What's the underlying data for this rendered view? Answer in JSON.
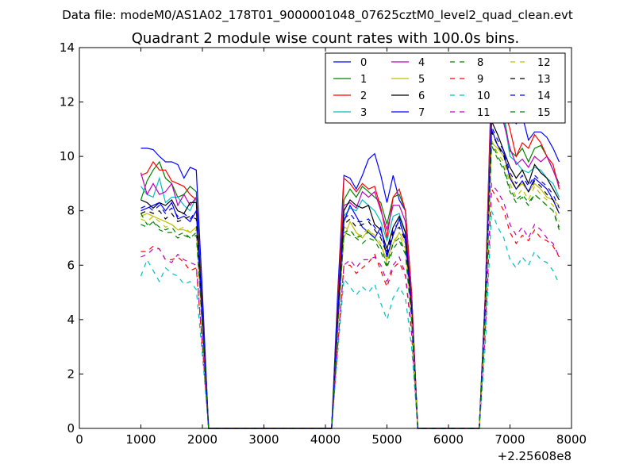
{
  "chart_data": {
    "type": "line",
    "suptitle": "Data file: modeM0/AS1A02_178T01_9000001048_07625cztM0_level2_quad_clean.evt",
    "title": "Quadrant 2 module wise count rates with 100.0s bins.",
    "xlabel": "",
    "ylabel": "",
    "x_offset_label": "+2.25608e8",
    "xlim": [
      0,
      8000
    ],
    "ylim": [
      0,
      14
    ],
    "xticks": [
      0,
      1000,
      2000,
      3000,
      4000,
      5000,
      6000,
      7000,
      8000
    ],
    "yticks": [
      0,
      2,
      4,
      6,
      8,
      10,
      12,
      14
    ],
    "legend_position": "top-right",
    "x": [
      1000,
      1100,
      1200,
      1300,
      1400,
      1500,
      1600,
      1700,
      1800,
      1900,
      2000,
      2100,
      2200,
      2300,
      2400,
      2500,
      2600,
      2700,
      2800,
      2900,
      3000,
      3100,
      3200,
      3300,
      3400,
      3500,
      3600,
      3700,
      3800,
      3900,
      4000,
      4100,
      4200,
      4300,
      4400,
      4500,
      4600,
      4700,
      4800,
      4900,
      5000,
      5100,
      5200,
      5300,
      5400,
      5500,
      5600,
      5700,
      5800,
      5900,
      6000,
      6100,
      6200,
      6300,
      6400,
      6500,
      6600,
      6700,
      6800,
      6900,
      7000,
      7100,
      7200,
      7300,
      7400,
      7500,
      7600,
      7700,
      7800
    ],
    "series": [
      {
        "name": "0",
        "color": "#0000ff",
        "dash": "solid",
        "values": [
          10.3,
          10.3,
          10.25,
          10.0,
          9.8,
          9.8,
          9.7,
          9.2,
          9.6,
          9.5,
          5.0,
          0,
          0,
          0,
          0,
          0,
          0,
          0,
          0,
          0,
          0,
          0,
          0,
          0,
          0,
          0,
          0,
          0,
          0,
          0,
          0,
          0,
          5.0,
          9.3,
          9.2,
          8.8,
          9.3,
          9.9,
          10.1,
          9.3,
          8.3,
          9.3,
          8.4,
          8.0,
          5.0,
          0,
          0,
          0,
          0,
          0,
          0,
          0,
          0,
          0,
          0,
          0,
          5.0,
          13.05,
          12.8,
          12.3,
          11.5,
          11.2,
          11.5,
          10.6,
          10.9,
          10.9,
          10.7,
          10.3,
          9.8
        ]
      },
      {
        "name": "1",
        "color": "#008000",
        "dash": "solid",
        "values": [
          8.4,
          9.1,
          9.5,
          9.8,
          9.2,
          9.0,
          8.5,
          8.6,
          8.9,
          8.7,
          4.5,
          0,
          0,
          0,
          0,
          0,
          0,
          0,
          0,
          0,
          0,
          0,
          0,
          0,
          0,
          0,
          0,
          0,
          0,
          0,
          0,
          0,
          4.5,
          8.4,
          8.8,
          8.5,
          8.9,
          8.7,
          8.5,
          8.3,
          7.5,
          8.5,
          8.6,
          8.0,
          5.0,
          0,
          0,
          0,
          0,
          0,
          0,
          0,
          0,
          0,
          0,
          0,
          5.0,
          12.5,
          11.5,
          11.5,
          10.2,
          10.0,
          10.3,
          9.8,
          10.3,
          10.4,
          10.0,
          9.5,
          9.0
        ]
      },
      {
        "name": "2",
        "color": "#ff0000",
        "dash": "solid",
        "values": [
          9.3,
          9.4,
          9.8,
          9.5,
          9.5,
          9.1,
          9.0,
          8.9,
          8.6,
          8.4,
          4.4,
          0,
          0,
          0,
          0,
          0,
          0,
          0,
          0,
          0,
          0,
          0,
          0,
          0,
          0,
          0,
          0,
          0,
          0,
          0,
          0,
          0,
          4.5,
          9.2,
          9.0,
          8.7,
          9.0,
          8.8,
          8.9,
          8.1,
          7.0,
          8.5,
          8.8,
          8.0,
          5.0,
          0,
          0,
          0,
          0,
          0,
          0,
          0,
          0,
          0,
          0,
          0,
          5.0,
          12.8,
          12.0,
          11.8,
          11.0,
          10.0,
          10.5,
          10.3,
          10.8,
          10.5,
          10.0,
          9.7,
          8.8
        ]
      },
      {
        "name": "3",
        "color": "#00bfbf",
        "dash": "solid",
        "values": [
          8.9,
          8.6,
          8.5,
          9.2,
          8.3,
          8.5,
          8.5,
          8.2,
          8.0,
          8.5,
          4.2,
          0,
          0,
          0,
          0,
          0,
          0,
          0,
          0,
          0,
          0,
          0,
          0,
          0,
          0,
          0,
          0,
          0,
          0,
          0,
          0,
          0,
          4.2,
          7.8,
          8.1,
          8.0,
          8.4,
          8.2,
          8.0,
          7.6,
          6.9,
          7.8,
          7.9,
          7.2,
          4.6,
          0,
          0,
          0,
          0,
          0,
          0,
          0,
          0,
          0,
          0,
          0,
          4.8,
          12.0,
          11.5,
          11.4,
          10.0,
          9.8,
          9.5,
          9.4,
          9.6,
          9.5,
          9.2,
          9.0,
          8.5
        ]
      },
      {
        "name": "4",
        "color": "#bf00bf",
        "dash": "solid",
        "values": [
          9.4,
          8.6,
          9.0,
          8.6,
          8.7,
          9.0,
          8.2,
          8.6,
          8.2,
          8.5,
          4.3,
          0,
          0,
          0,
          0,
          0,
          0,
          0,
          0,
          0,
          0,
          0,
          0,
          0,
          0,
          0,
          0,
          0,
          0,
          0,
          0,
          0,
          4.3,
          8.2,
          8.3,
          8.1,
          8.7,
          8.5,
          8.7,
          8.0,
          7.3,
          8.2,
          8.2,
          7.6,
          4.7,
          0,
          0,
          0,
          0,
          0,
          0,
          0,
          0,
          0,
          0,
          0,
          4.8,
          11.8,
          11.6,
          11.2,
          10.3,
          9.7,
          9.9,
          9.6,
          10.0,
          9.8,
          10.0,
          9.5,
          8.9
        ]
      },
      {
        "name": "5",
        "color": "#bfbf00",
        "dash": "solid",
        "values": [
          7.8,
          7.9,
          7.8,
          7.7,
          7.6,
          7.5,
          7.3,
          7.3,
          7.2,
          7.4,
          3.8,
          0,
          0,
          0,
          0,
          0,
          0,
          0,
          0,
          0,
          0,
          0,
          0,
          0,
          0,
          0,
          0,
          0,
          0,
          0,
          0,
          0,
          3.8,
          7.0,
          7.6,
          7.2,
          7.0,
          7.3,
          7.0,
          6.7,
          6.2,
          6.8,
          7.2,
          6.8,
          4.2,
          0,
          0,
          0,
          0,
          0,
          0,
          0,
          0,
          0,
          0,
          0,
          4.3,
          10.5,
          10.3,
          10.0,
          9.3,
          8.8,
          9.0,
          8.7,
          9.0,
          8.8,
          8.5,
          8.4,
          8.2
        ]
      },
      {
        "name": "6",
        "color": "#000000",
        "dash": "solid",
        "values": [
          8.4,
          8.3,
          8.1,
          8.3,
          8.2,
          8.4,
          8.0,
          7.9,
          8.3,
          8.3,
          4.2,
          0,
          0,
          0,
          0,
          0,
          0,
          0,
          0,
          0,
          0,
          0,
          0,
          0,
          0,
          0,
          0,
          0,
          0,
          0,
          0,
          0,
          4.2,
          8.0,
          8.4,
          8.2,
          8.1,
          8.2,
          7.5,
          7.3,
          6.6,
          7.4,
          7.8,
          7.2,
          4.4,
          0,
          0,
          0,
          0,
          0,
          0,
          0,
          0,
          0,
          0,
          0,
          4.6,
          11.3,
          10.8,
          10.2,
          9.6,
          9.2,
          9.5,
          9.0,
          9.7,
          9.4,
          9.2,
          8.8,
          8.4
        ]
      },
      {
        "name": "7",
        "color": "#0000ff",
        "dash": "solid",
        "values": [
          8.0,
          8.1,
          8.2,
          8.3,
          8.0,
          8.3,
          7.7,
          7.8,
          7.6,
          8.0,
          4.1,
          0,
          0,
          0,
          0,
          0,
          0,
          0,
          0,
          0,
          0,
          0,
          0,
          0,
          0,
          0,
          0,
          0,
          0,
          0,
          0,
          0,
          4.1,
          7.6,
          8.2,
          7.8,
          7.4,
          7.2,
          7.0,
          7.4,
          6.3,
          7.1,
          7.7,
          6.9,
          4.2,
          0,
          0,
          0,
          0,
          0,
          0,
          0,
          0,
          0,
          0,
          0,
          4.5,
          11.0,
          10.4,
          10.1,
          9.2,
          8.8,
          9.1,
          8.7,
          9.2,
          9.0,
          8.8,
          8.4,
          7.9
        ]
      },
      {
        "name": "8",
        "color": "#008000",
        "dash": "dashed",
        "values": [
          7.9,
          7.5,
          7.6,
          7.3,
          7.2,
          7.2,
          7.0,
          7.1,
          7.0,
          7.2,
          3.7,
          0,
          0,
          0,
          0,
          0,
          0,
          0,
          0,
          0,
          0,
          0,
          0,
          0,
          0,
          0,
          0,
          0,
          0,
          0,
          0,
          0,
          3.7,
          7.2,
          7.1,
          7.0,
          6.8,
          7.0,
          6.9,
          6.5,
          5.9,
          6.6,
          6.9,
          6.4,
          4.0,
          0,
          0,
          0,
          0,
          0,
          0,
          0,
          0,
          0,
          0,
          0,
          4.1,
          10.5,
          10.0,
          9.6,
          8.8,
          8.4,
          8.6,
          8.3,
          8.6,
          8.4,
          8.2,
          8.0,
          7.4
        ]
      },
      {
        "name": "9",
        "color": "#ff0000",
        "dash": "dashed",
        "values": [
          6.5,
          6.5,
          6.7,
          6.6,
          6.2,
          6.2,
          6.3,
          6.1,
          5.8,
          5.9,
          3.0,
          0,
          0,
          0,
          0,
          0,
          0,
          0,
          0,
          0,
          0,
          0,
          0,
          0,
          0,
          0,
          0,
          0,
          0,
          0,
          0,
          0,
          3.0,
          6.0,
          6.0,
          5.7,
          5.9,
          6.1,
          6.4,
          5.8,
          5.2,
          5.9,
          6.1,
          5.6,
          3.5,
          0,
          0,
          0,
          0,
          0,
          0,
          0,
          0,
          0,
          0,
          0,
          3.6,
          8.8,
          8.4,
          8.0,
          7.2,
          6.8,
          7.1,
          6.9,
          7.3,
          7.0,
          6.9,
          6.7,
          6.3
        ]
      },
      {
        "name": "10",
        "color": "#00bfbf",
        "dash": "dashed",
        "values": [
          5.6,
          6.2,
          5.8,
          5.4,
          5.9,
          5.7,
          5.6,
          5.3,
          5.4,
          5.1,
          2.7,
          0,
          0,
          0,
          0,
          0,
          0,
          0,
          0,
          0,
          0,
          0,
          0,
          0,
          0,
          0,
          0,
          0,
          0,
          0,
          0,
          0,
          2.8,
          5.5,
          5.2,
          4.9,
          5.2,
          5.0,
          5.3,
          4.6,
          4.0,
          4.8,
          5.2,
          4.8,
          3.0,
          0,
          0,
          0,
          0,
          0,
          0,
          0,
          0,
          0,
          0,
          0,
          3.1,
          8.0,
          7.4,
          7.0,
          6.2,
          5.9,
          6.3,
          6.0,
          6.5,
          6.2,
          6.1,
          5.8,
          5.3
        ]
      },
      {
        "name": "11",
        "color": "#bf00bf",
        "dash": "dashed",
        "values": [
          6.3,
          6.4,
          6.6,
          6.6,
          6.2,
          6.1,
          6.4,
          6.2,
          6.1,
          6.0,
          3.1,
          0,
          0,
          0,
          0,
          0,
          0,
          0,
          0,
          0,
          0,
          0,
          0,
          0,
          0,
          0,
          0,
          0,
          0,
          0,
          0,
          0,
          3.1,
          6.0,
          6.2,
          5.9,
          6.2,
          6.2,
          6.3,
          6.0,
          5.4,
          6.0,
          6.3,
          5.7,
          3.6,
          0,
          0,
          0,
          0,
          0,
          0,
          0,
          0,
          0,
          0,
          0,
          3.7,
          9.0,
          8.7,
          8.3,
          7.5,
          7.1,
          7.4,
          7.0,
          7.5,
          7.3,
          7.0,
          6.8,
          6.3
        ]
      },
      {
        "name": "12",
        "color": "#bfbf00",
        "dash": "dashed",
        "values": [
          7.7,
          7.6,
          7.8,
          7.6,
          7.4,
          7.5,
          7.3,
          7.4,
          7.2,
          7.3,
          3.8,
          0,
          0,
          0,
          0,
          0,
          0,
          0,
          0,
          0,
          0,
          0,
          0,
          0,
          0,
          0,
          0,
          0,
          0,
          0,
          0,
          0,
          3.8,
          7.4,
          7.3,
          7.0,
          7.2,
          7.3,
          7.1,
          6.8,
          6.1,
          6.9,
          7.1,
          6.6,
          4.1,
          0,
          0,
          0,
          0,
          0,
          0,
          0,
          0,
          0,
          0,
          0,
          4.2,
          10.6,
          10.1,
          9.8,
          9.0,
          8.5,
          8.8,
          8.4,
          8.9,
          8.6,
          8.4,
          8.2,
          7.6
        ]
      },
      {
        "name": "13",
        "color": "#000000",
        "dash": "dashed",
        "values": [
          7.9,
          8.0,
          7.9,
          8.0,
          7.7,
          7.9,
          7.6,
          7.7,
          7.8,
          7.7,
          3.9,
          0,
          0,
          0,
          0,
          0,
          0,
          0,
          0,
          0,
          0,
          0,
          0,
          0,
          0,
          0,
          0,
          0,
          0,
          0,
          0,
          0,
          3.9,
          7.5,
          7.7,
          7.4,
          7.5,
          7.6,
          7.3,
          7.0,
          6.4,
          7.2,
          7.4,
          6.9,
          4.3,
          0,
          0,
          0,
          0,
          0,
          0,
          0,
          0,
          0,
          0,
          0,
          4.4,
          10.9,
          10.4,
          10.0,
          9.2,
          8.8,
          9.1,
          8.7,
          9.1,
          8.9,
          8.6,
          8.4,
          7.9
        ]
      },
      {
        "name": "14",
        "color": "#0000ff",
        "dash": "dashed",
        "values": [
          8.1,
          8.2,
          8.0,
          8.2,
          7.9,
          8.1,
          7.8,
          7.9,
          7.7,
          8.0,
          4.0,
          0,
          0,
          0,
          0,
          0,
          0,
          0,
          0,
          0,
          0,
          0,
          0,
          0,
          0,
          0,
          0,
          0,
          0,
          0,
          0,
          0,
          4.0,
          7.7,
          7.9,
          7.6,
          7.6,
          7.7,
          7.4,
          7.1,
          6.5,
          7.3,
          7.6,
          7.0,
          4.3,
          0,
          0,
          0,
          0,
          0,
          0,
          0,
          0,
          0,
          0,
          0,
          4.5,
          11.1,
          10.6,
          10.2,
          9.4,
          9.0,
          9.3,
          8.9,
          9.3,
          9.1,
          8.9,
          8.6,
          8.1
        ]
      },
      {
        "name": "15",
        "color": "#008000",
        "dash": "dashed",
        "values": [
          7.5,
          7.4,
          7.6,
          7.4,
          7.3,
          7.4,
          7.1,
          7.2,
          7.0,
          7.1,
          3.7,
          0,
          0,
          0,
          0,
          0,
          0,
          0,
          0,
          0,
          0,
          0,
          0,
          0,
          0,
          0,
          0,
          0,
          0,
          0,
          0,
          0,
          3.7,
          7.2,
          7.3,
          7.0,
          7.1,
          7.2,
          7.0,
          6.7,
          6.0,
          6.8,
          7.0,
          6.5,
          4.0,
          0,
          0,
          0,
          0,
          0,
          0,
          0,
          0,
          0,
          0,
          0,
          4.1,
          10.4,
          9.9,
          9.5,
          8.7,
          8.3,
          8.5,
          8.2,
          8.6,
          8.4,
          8.2,
          8.0,
          7.3
        ]
      }
    ]
  }
}
